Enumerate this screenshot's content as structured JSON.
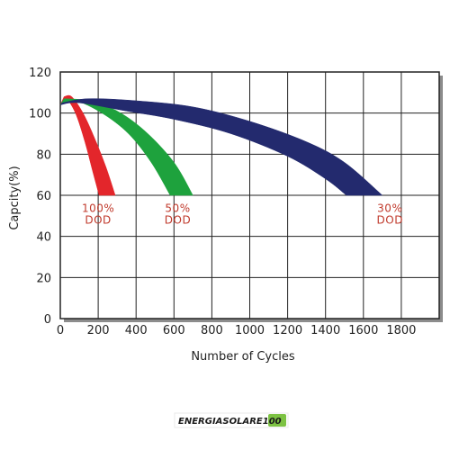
{
  "chart_data": {
    "type": "area",
    "xlabel": "Number of Cycles",
    "ylabel": "Capcity(%)",
    "xlim": [
      0,
      2000
    ],
    "ylim": [
      0,
      120
    ],
    "x_ticks": [
      0,
      200,
      400,
      600,
      800,
      1000,
      1200,
      1400,
      1600,
      1800
    ],
    "y_ticks": [
      0,
      20,
      40,
      60,
      80,
      100,
      120
    ],
    "grid": true,
    "shadow": true,
    "series": [
      {
        "label_line1": "100%",
        "label_line2": "DOD",
        "color": "#e3262b",
        "label_color": "#c0392b",
        "label_anchor": [
          200,
          52
        ],
        "upper": [
          [
            20,
            108
          ],
          [
            60,
            108
          ],
          [
            120,
            100
          ],
          [
            180,
            88
          ],
          [
            240,
            74
          ],
          [
            290,
            60
          ]
        ],
        "lower": [
          [
            0,
            104
          ],
          [
            30,
            107
          ],
          [
            80,
            100
          ],
          [
            130,
            86
          ],
          [
            170,
            72
          ],
          [
            205,
            60
          ]
        ]
      },
      {
        "label_line1": "50%",
        "label_line2": "DOD",
        "color": "#1ea23d",
        "label_color": "#c0392b",
        "label_anchor": [
          620,
          52
        ],
        "upper": [
          [
            20,
            107
          ],
          [
            150,
            106
          ],
          [
            300,
            101
          ],
          [
            450,
            91
          ],
          [
            600,
            76
          ],
          [
            700,
            60
          ]
        ],
        "lower": [
          [
            0,
            104
          ],
          [
            80,
            106
          ],
          [
            220,
            100
          ],
          [
            360,
            90
          ],
          [
            480,
            76
          ],
          [
            580,
            60
          ]
        ]
      },
      {
        "label_line1": "30%",
        "label_line2": "DOD",
        "color": "#232a6e",
        "label_color": "#c0392b",
        "label_anchor": [
          1740,
          52
        ],
        "upper": [
          [
            10,
            105
          ],
          [
            150,
            107
          ],
          [
            400,
            106
          ],
          [
            700,
            103
          ],
          [
            1000,
            96
          ],
          [
            1300,
            86
          ],
          [
            1500,
            76
          ],
          [
            1700,
            60
          ]
        ],
        "lower": [
          [
            0,
            104
          ],
          [
            100,
            105
          ],
          [
            350,
            101
          ],
          [
            600,
            97
          ],
          [
            900,
            90
          ],
          [
            1200,
            79
          ],
          [
            1400,
            68
          ],
          [
            1510,
            60
          ]
        ]
      }
    ]
  },
  "logo": {
    "text": "ENERGIASOLARE100",
    "color": "#7cc242"
  }
}
